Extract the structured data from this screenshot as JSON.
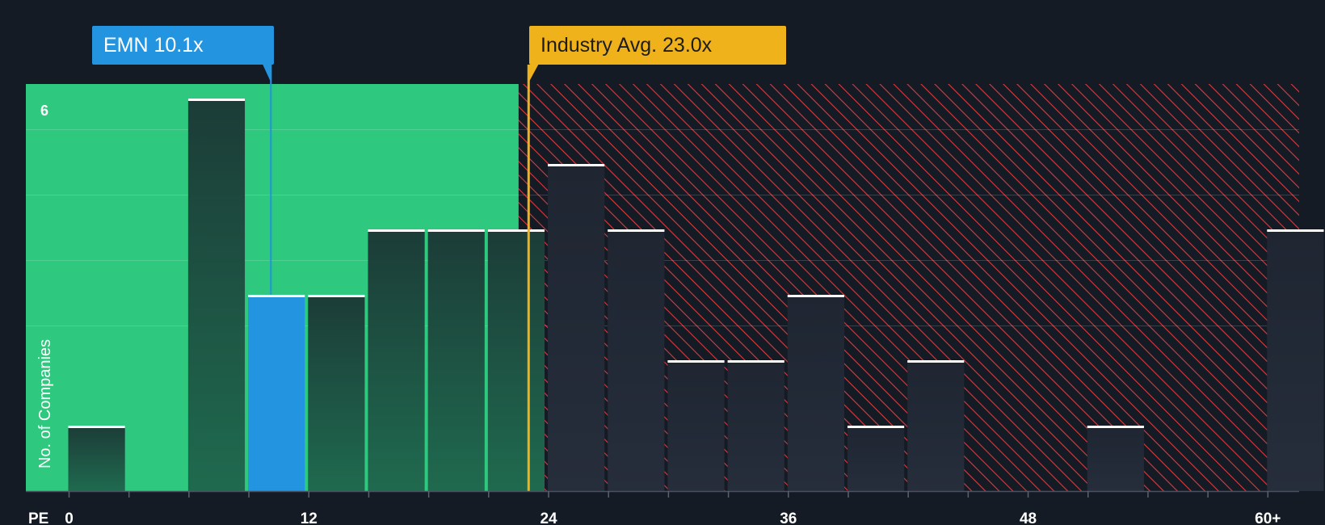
{
  "chart_data": {
    "type": "bar",
    "title": "",
    "xlabel": "PE",
    "ylabel": "No. of Companies",
    "xlim": [
      -1,
      61
    ],
    "ylim": [
      0,
      6.2
    ],
    "x_ticks": [
      {
        "value": 0,
        "label": "0"
      },
      {
        "value": 12,
        "label": "12"
      },
      {
        "value": 24,
        "label": "24"
      },
      {
        "value": 36,
        "label": "36"
      },
      {
        "value": 48,
        "label": "48"
      },
      {
        "value": 60,
        "label": "60+"
      }
    ],
    "y_ticks": [
      {
        "value": 6,
        "label": "6"
      }
    ],
    "bin_width": 3,
    "bars": [
      {
        "x": 0,
        "value": 1
      },
      {
        "x": 6,
        "value": 6
      },
      {
        "x": 9,
        "value": 3,
        "highlight": true
      },
      {
        "x": 12,
        "value": 3
      },
      {
        "x": 15,
        "value": 4
      },
      {
        "x": 18,
        "value": 4
      },
      {
        "x": 21,
        "value": 4
      },
      {
        "x": 24,
        "value": 5
      },
      {
        "x": 27,
        "value": 4
      },
      {
        "x": 30,
        "value": 2
      },
      {
        "x": 33,
        "value": 2
      },
      {
        "x": 36,
        "value": 3
      },
      {
        "x": 39,
        "value": 1
      },
      {
        "x": 42,
        "value": 2
      },
      {
        "x": 51,
        "value": 1
      },
      {
        "x": 60,
        "value": 4
      }
    ],
    "fair_value_threshold": 22.5,
    "company": {
      "label": "EMN 10.1x",
      "value": 10.1
    },
    "industry_avg": {
      "label": "Industry Avg. 23.0x",
      "value": 23.0
    },
    "colors": {
      "background": "#151b24",
      "fair_zone": "#2ec97f",
      "over_zone_stripe": "#e0393c",
      "bar_dark": "#1e4a40",
      "bar_highlight": "#2394e0",
      "bar_top": "#ffffff",
      "company_line": "#2394e0",
      "industry_line": "#efb21b"
    }
  }
}
